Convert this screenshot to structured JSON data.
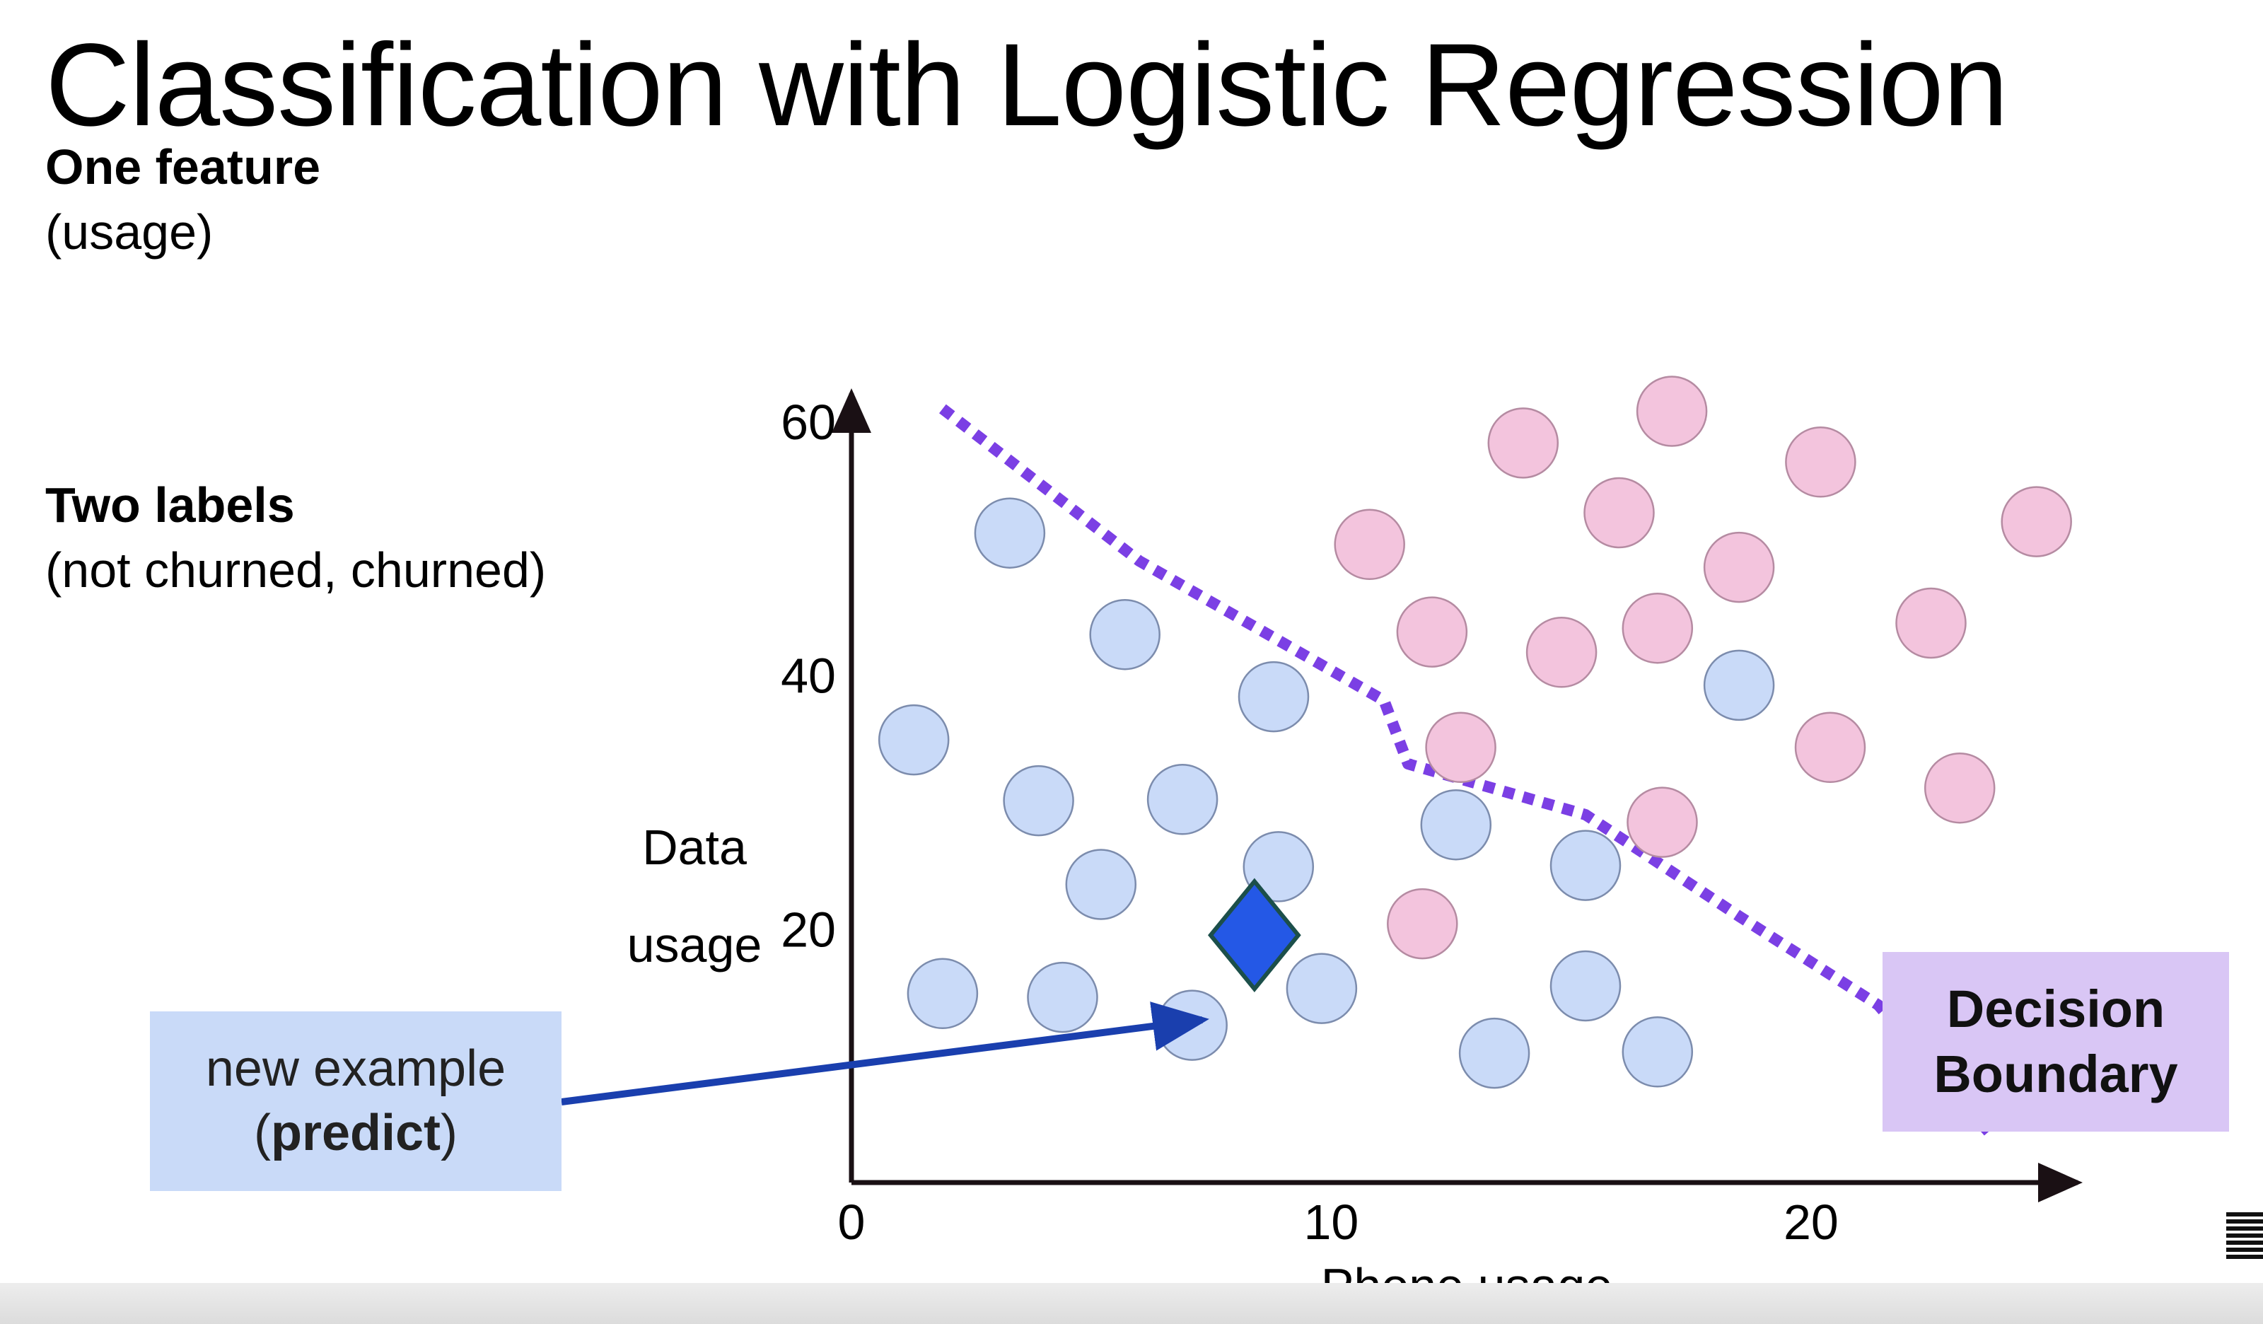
{
  "slide": {
    "title": "Classification with Logistic Regression",
    "feature_heading": "One feature",
    "feature_detail": "(usage)",
    "labels_heading": "Two labels",
    "labels_detail": "(not churned, churned)"
  },
  "callouts": {
    "new_example_line1": "new example",
    "new_example_open": "(",
    "new_example_bold": "predict",
    "new_example_close": ")",
    "decision_line1": "Decision",
    "decision_line2": "Boundary"
  },
  "colors": {
    "not_churned": "#c9daf8",
    "churned": "#f3c4dd",
    "boundary": "#7b3fe4",
    "new_point": "#2458e6",
    "arrow": "#1a3fae",
    "axis": "#1a1014"
  },
  "chart_data": {
    "type": "scatter",
    "xlabel": "Phone usage",
    "ylabel_line1": "Data",
    "ylabel_line2": "usage",
    "xlim": [
      0,
      25.5
    ],
    "ylim": [
      0,
      62
    ],
    "xticks": [
      0,
      10,
      20
    ],
    "yticks": [
      20,
      40,
      60
    ],
    "grid": false,
    "series": [
      {
        "label": "not churned",
        "points": [
          [
            3.3,
            51.2
          ],
          [
            5.7,
            43.2
          ],
          [
            8.8,
            38.3
          ],
          [
            1.3,
            34.9
          ],
          [
            3.9,
            30.1
          ],
          [
            6.9,
            30.2
          ],
          [
            8.9,
            24.9
          ],
          [
            5.2,
            23.5
          ],
          [
            1.9,
            14.9
          ],
          [
            4.4,
            14.6
          ],
          [
            9.8,
            15.3
          ],
          [
            7.1,
            12.4
          ],
          [
            12.6,
            28.2
          ],
          [
            15.3,
            25.0
          ],
          [
            18.5,
            39.2
          ],
          [
            15.3,
            15.5
          ],
          [
            13.4,
            10.2
          ],
          [
            16.8,
            10.3
          ]
        ]
      },
      {
        "label": "churned",
        "points": [
          [
            10.8,
            50.3
          ],
          [
            14.0,
            58.3
          ],
          [
            16.0,
            52.8
          ],
          [
            17.1,
            60.8
          ],
          [
            20.2,
            56.8
          ],
          [
            24.7,
            52.1
          ],
          [
            18.5,
            48.5
          ],
          [
            12.1,
            43.4
          ],
          [
            14.8,
            41.8
          ],
          [
            16.8,
            43.7
          ],
          [
            22.5,
            44.1
          ],
          [
            12.7,
            34.3
          ],
          [
            20.4,
            34.3
          ],
          [
            23.1,
            31.1
          ],
          [
            16.9,
            28.4
          ],
          [
            11.9,
            20.4
          ]
        ]
      }
    ],
    "new_example": [
      8.4,
      19.5
    ],
    "decision_boundary": [
      [
        1.9,
        61
      ],
      [
        6,
        49
      ],
      [
        11.1,
        38
      ],
      [
        11.6,
        33
      ],
      [
        15.3,
        29
      ],
      [
        18.5,
        21
      ],
      [
        21.4,
        14
      ],
      [
        23.7,
        4
      ]
    ]
  }
}
